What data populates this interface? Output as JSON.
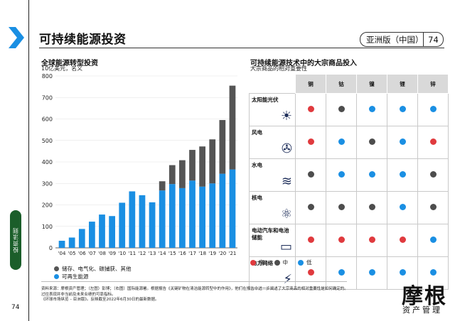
{
  "header": {
    "title": "可持续能源投资",
    "region": "亚洲版（中国）",
    "page": "74"
  },
  "side_tab": "投资法则",
  "page_number_left": "74",
  "left_chart": {
    "title": "全球能源转型投资",
    "subtitle": "10亿美元，名义"
  },
  "chart_data": [
    {
      "type": "bar",
      "stacked": true,
      "title": "全球能源转型投资",
      "ylabel": "10亿美元，名义",
      "categories": [
        "'04",
        "'05",
        "'06",
        "'07",
        "'08",
        "'09",
        "'10",
        "'11",
        "'12",
        "'13",
        "'14",
        "'15",
        "'16",
        "'17",
        "'18",
        "'19",
        "'20",
        "'21"
      ],
      "ylim": [
        0,
        800
      ],
      "yticks": [
        0,
        100,
        200,
        300,
        400,
        500,
        600,
        700,
        800
      ],
      "series": [
        {
          "name": "可再生能源",
          "color": "#1a8fe3",
          "values": [
            33,
            48,
            88,
            122,
            155,
            148,
            210,
            263,
            245,
            212,
            267,
            297,
            278,
            313,
            285,
            300,
            345,
            365
          ]
        },
        {
          "name": "储存、电气化、碳捕获、其他",
          "color": "#555555",
          "values": [
            0,
            0,
            0,
            0,
            0,
            0,
            0,
            0,
            0,
            0,
            43,
            88,
            130,
            143,
            187,
            205,
            250,
            390
          ]
        }
      ],
      "legend": [
        {
          "label": "储存、电气化、碳捕获、其他",
          "color": "#555555"
        },
        {
          "label": "可再生能源",
          "color": "#1a8fe3"
        }
      ]
    },
    {
      "type": "table",
      "title": "可持续能源技术中的大宗商品投入",
      "subtitle": "大宗商品的相对重要性",
      "columns": [
        "铜",
        "钴",
        "镍",
        "锂",
        "锌"
      ],
      "rows": [
        {
          "label": "太阳能光伏",
          "icon": "solar-panel-icon",
          "levels": [
            "high",
            "mid",
            "low",
            "low",
            "low"
          ]
        },
        {
          "label": "风电",
          "icon": "wind-turbine-icon",
          "levels": [
            "high",
            "low",
            "mid",
            "low",
            "high"
          ]
        },
        {
          "label": "水电",
          "icon": "hydro-wave-icon",
          "levels": [
            "mid",
            "low",
            "low",
            "low",
            "mid"
          ]
        },
        {
          "label": "核电",
          "icon": "atom-icon",
          "levels": [
            "mid",
            "mid",
            "mid",
            "low",
            "mid"
          ]
        },
        {
          "label": "电动汽车和电池储能",
          "icon": "battery-icon",
          "levels": [
            "high",
            "high",
            "high",
            "high",
            "low"
          ]
        },
        {
          "label": "电力网络",
          "icon": "power-tower-icon",
          "levels": [
            "high",
            "low",
            "low",
            "low",
            "low"
          ]
        }
      ],
      "legend": [
        {
          "key": "high",
          "label": "高",
          "color": "#e03a3e"
        },
        {
          "key": "mid",
          "label": "中",
          "color": "#4d4d4d"
        },
        {
          "key": "low",
          "label": "低",
          "color": "#1a8fe3"
        }
      ]
    }
  ],
  "footnotes": [
    "资料来源：摩根资产管理；（左图）彭博；（右图）国际能源署。根据报告《关键矿物在清洁能源转型中的作用》，他们在报告中进一步阐述了大宗商品的相对重要性是如何确定的。",
    "过往表现并非当前及未来业绩的可靠指标。",
    "《环球市场纵览 – 亚洲版》。反映截至2022年6月30日的最新数据。"
  ],
  "logo": {
    "main": "摩根",
    "sub": "资产管理"
  },
  "colors": {
    "accent_blue": "#1a8fe3",
    "brand_green": "#1b5e2a",
    "chevron_blue": "#1a8fe3"
  }
}
